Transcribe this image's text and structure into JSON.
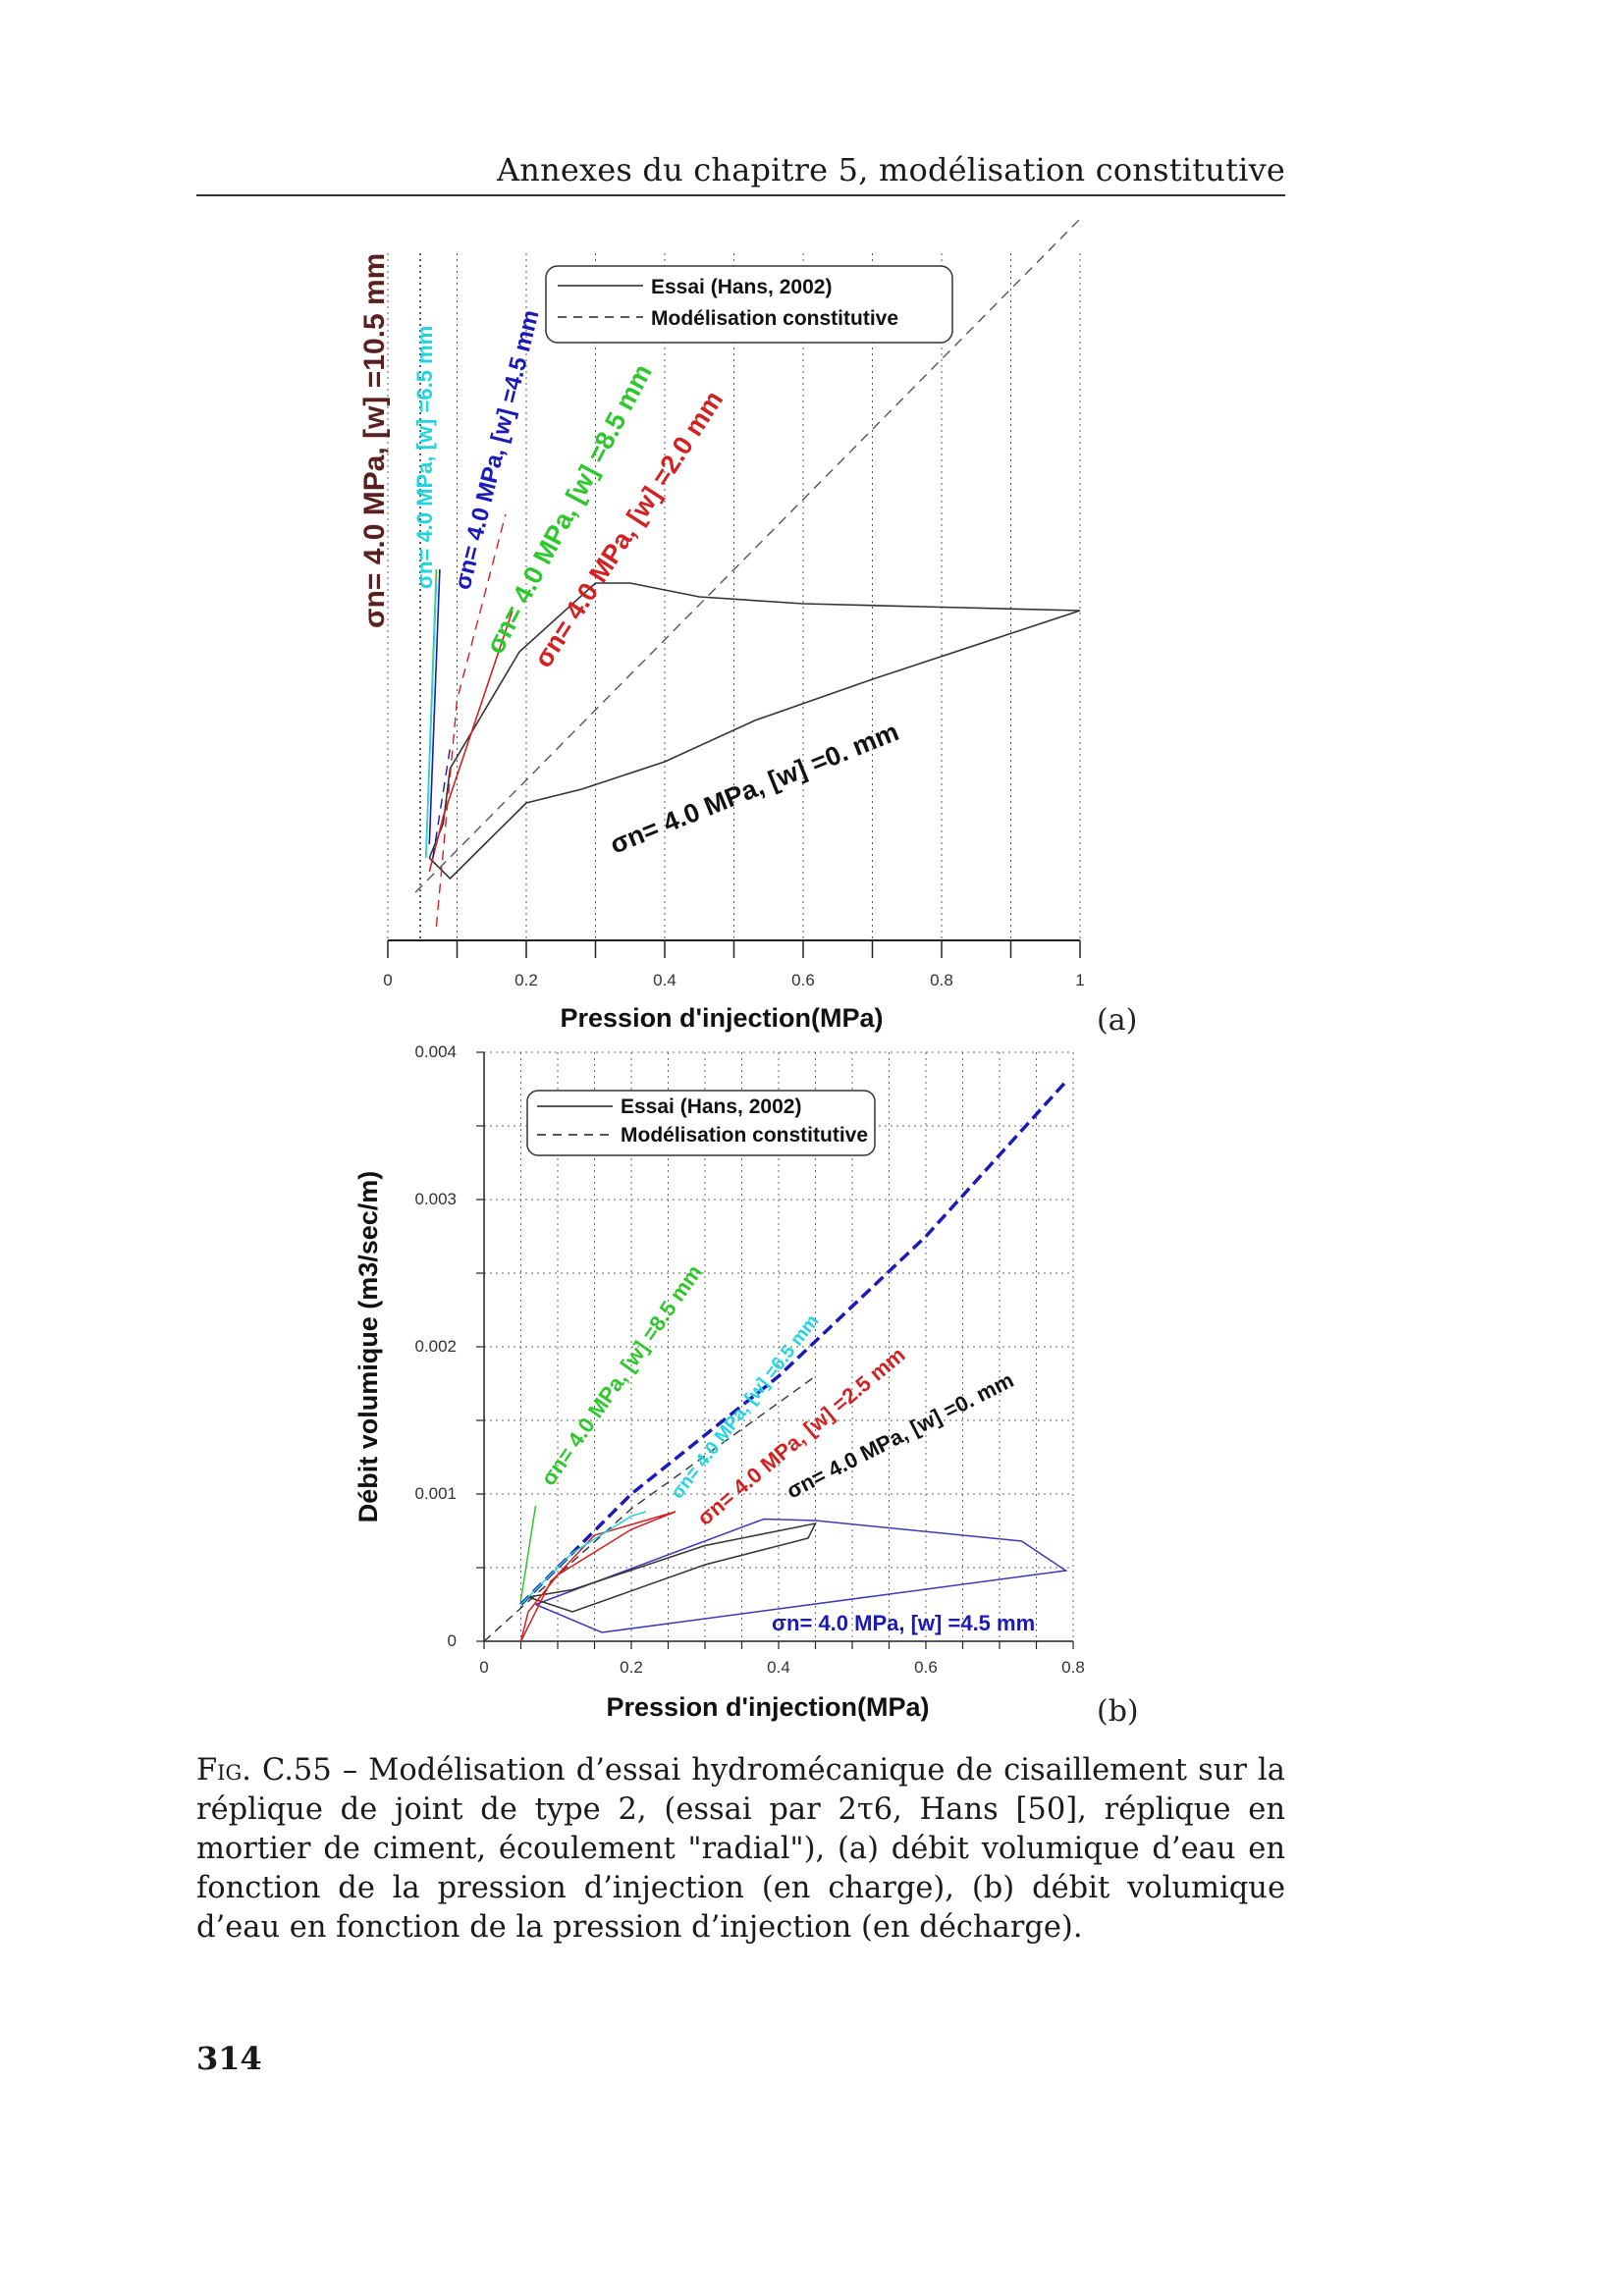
{
  "header": {
    "running_title": "Annexes du chapitre 5, modélisation constitutive"
  },
  "caption": {
    "figure_number": "Fig. C.55",
    "text": " – Modélisation d’essai hydromécanique de cisaillement sur la réplique de joint de type 2, (essai par 2τ6, Hans [50], réplique en mortier de ciment, écoulement \"radial\"), (a) débit volumique d’eau en fonction de la pression d’injection (en charge), (b) débit volumique d’eau en fonction de la pression d’injection (en décharge)."
  },
  "page_number": "314",
  "chart_data": [
    {
      "panel_label": "(a)",
      "type": "line",
      "xlabel": "Pression d'injection(MPa)",
      "ylabel": "",
      "xlim": [
        0,
        1
      ],
      "xticks": [
        "0",
        "0.2",
        "0.4",
        "0.6",
        "0.8",
        "1"
      ],
      "grid": "vertical dotted",
      "legend": {
        "placement": "top",
        "entries": [
          {
            "label": "Essai (Hans, 2002)",
            "style": "solid"
          },
          {
            "label": "Modélisation constitutive",
            "style": "dashed"
          }
        ]
      },
      "annotations": [
        {
          "text": "σn= 4.0 MPa, [w] =10.5 mm",
          "color": "#5a1f1f"
        },
        {
          "text": "σn= 4.0 MPa, [w] =6.5 mm",
          "color": "#22d3e0"
        },
        {
          "text": "σn= 4.0 MPa, [w] =4.5 mm",
          "color": "#1a1ab8"
        },
        {
          "text": "σn= 4.0 MPa, [w] =8.5 mm",
          "color": "#2ec82e"
        },
        {
          "text": "σn= 4.0 MPa, [w] =2.0 mm",
          "color": "#d42020"
        },
        {
          "text": "σn= 4.0 MPa, [w] =0. mm",
          "color": "#111111"
        }
      ],
      "series": [
        {
          "name": "σn= 4.0 MPa, [w] =0. mm",
          "kind": "essai",
          "color": "#333333",
          "x": [
            0.06,
            0.08,
            0.09,
            0.19,
            0.3,
            0.35,
            0.45,
            0.6,
            0.8,
            1.0,
            0.7,
            0.53,
            0.4,
            0.28,
            0.2,
            0.13,
            0.09,
            0.06
          ],
          "y": [
            0.12,
            0.17,
            0.25,
            0.42,
            0.52,
            0.52,
            0.5,
            0.49,
            0.485,
            0.48,
            0.38,
            0.32,
            0.26,
            0.22,
            0.2,
            0.13,
            0.09,
            0.12
          ]
        },
        {
          "name": "σn= 4.0 MPa, [w] =0. mm",
          "kind": "modélisation",
          "color": "#555555",
          "x": [
            0.04,
            1.0
          ],
          "y": [
            0.07,
            1.05
          ]
        },
        {
          "name": "σn= 4.0 MPa, [w] =2.0 mm",
          "kind": "essai",
          "color": "#d42020",
          "x": [
            0.06,
            0.08,
            0.12,
            0.17,
            0.18
          ],
          "y": [
            0.1,
            0.18,
            0.3,
            0.45,
            0.48
          ]
        },
        {
          "name": "σn= 4.0 MPa, [w] =2.0 mm",
          "kind": "modélisation",
          "color": "#d42020",
          "x": [
            0.07,
            0.1,
            0.17
          ],
          "y": [
            0.02,
            0.35,
            0.62
          ]
        },
        {
          "name": "σn= 4.0 MPa, [w] =8.5 mm",
          "kind": "essai",
          "color": "#2ec82e",
          "x": [
            0.055,
            0.065,
            0.07
          ],
          "y": [
            0.12,
            0.4,
            0.54
          ]
        },
        {
          "name": "σn= 4.0 MPa, [w] =6.5 mm",
          "kind": "essai",
          "color": "#22d3e0",
          "x": [
            0.055,
            0.07
          ],
          "y": [
            0.12,
            0.52
          ]
        },
        {
          "name": "σn= 4.0 MPa, [w] =4.5 mm",
          "kind": "essai",
          "color": "#1a1ab8",
          "x": [
            0.06,
            0.075
          ],
          "y": [
            0.14,
            0.54
          ]
        },
        {
          "name": "σn= 4.0 MPa, [w] =4.5 mm",
          "kind": "modélisation",
          "color": "#1a1ab8",
          "x": [
            0.065,
            0.09
          ],
          "y": [
            0.12,
            0.28
          ]
        }
      ]
    },
    {
      "panel_label": "(b)",
      "type": "line",
      "xlabel": "Pression d'injection(MPa)",
      "ylabel": "Débit volumique (m3/sec/m)",
      "xlim": [
        0,
        0.8
      ],
      "ylim": [
        0,
        0.004
      ],
      "xticks": [
        "0",
        "0.2",
        "0.4",
        "0.6",
        "0.8"
      ],
      "yticks": [
        "0",
        "0.001",
        "0.002",
        "0.003",
        "0.004"
      ],
      "grid": "dotted",
      "legend": {
        "placement": "top",
        "entries": [
          {
            "label": "Essai (Hans, 2002)",
            "style": "solid"
          },
          {
            "label": "Modélisation constitutive",
            "style": "dashed"
          }
        ]
      },
      "annotations": [
        {
          "text": "σn= 4.0 MPa, [w] =8.5 mm",
          "color": "#2ec82e"
        },
        {
          "text": "σn= 4.0 MPa, [w] =6.5 mm",
          "color": "#22d3e0"
        },
        {
          "text": "σn= 4.0 MPa, [w] =2.5 mm",
          "color": "#d42020"
        },
        {
          "text": "σn= 4.0 MPa, [w] =0. mm",
          "color": "#111111"
        },
        {
          "text": "σn= 4.0 MPa, [w] =4.5 mm",
          "color": "#1a1ab8"
        }
      ],
      "series": [
        {
          "name": "σn= 4.0 MPa, [w] =4.5 mm",
          "kind": "essai",
          "color": "#3a3ab8",
          "x": [
            0.07,
            0.15,
            0.38,
            0.45,
            0.73,
            0.79,
            0.16,
            0.07
          ],
          "y": [
            0.00025,
            0.0004,
            0.00083,
            0.00082,
            0.00068,
            0.00048,
            6e-05,
            0.00025
          ]
        },
        {
          "name": "σn= 4.0 MPa, [w] =4.5 mm",
          "kind": "modélisation",
          "color": "#1a1ab8",
          "x": [
            0.05,
            0.2,
            0.4,
            0.6,
            0.79
          ],
          "y": [
            0.00025,
            0.001,
            0.0018,
            0.00275,
            0.0038
          ]
        },
        {
          "name": "σn= 4.0 MPa, [w] =0. mm",
          "kind": "essai",
          "color": "#333333",
          "x": [
            0.06,
            0.12,
            0.3,
            0.45,
            0.44,
            0.3,
            0.12,
            0.06
          ],
          "y": [
            0.0003,
            0.00035,
            0.00065,
            0.0008,
            0.0007,
            0.00052,
            0.0002,
            0.0003
          ]
        },
        {
          "name": "σn= 4.0 MPa, [w] =0. mm",
          "kind": "modélisation",
          "color": "#333333",
          "x": [
            0.0,
            0.2,
            0.45
          ],
          "y": [
            0.0,
            0.0009,
            0.0018
          ]
        },
        {
          "name": "σn= 4.0 MPa, [w] =2.5 mm",
          "kind": "essai",
          "color": "#d42020",
          "x": [
            0.05,
            0.09,
            0.15,
            0.26,
            0.2,
            0.1,
            0.06,
            0.05
          ],
          "y": [
            0.0,
            0.0004,
            0.00072,
            0.00088,
            0.00076,
            0.00045,
            0.0002,
            0.0
          ]
        },
        {
          "name": "σn= 4.0 MPa, [w] =6.5 mm",
          "kind": "essai",
          "color": "#22d3e0",
          "x": [
            0.05,
            0.12,
            0.2,
            0.22
          ],
          "y": [
            0.00025,
            0.0006,
            0.00085,
            0.00088
          ]
        },
        {
          "name": "σn= 4.0 MPa, [w] =8.5 mm",
          "kind": "essai",
          "color": "#2ec82e",
          "x": [
            0.05,
            0.07
          ],
          "y": [
            0.00028,
            0.00092
          ]
        }
      ]
    }
  ]
}
